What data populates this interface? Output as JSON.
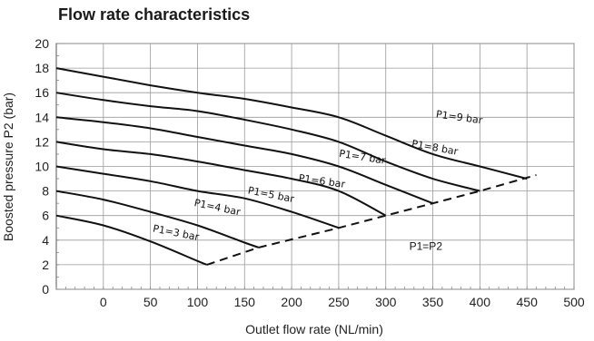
{
  "chart_data": {
    "type": "line",
    "title": "Flow rate characteristics",
    "xlabel": "Outlet flow rate (NL/min)",
    "ylabel": "Boosted pressure P2 (bar)",
    "xlim": [
      -50,
      500
    ],
    "ylim": [
      0,
      20
    ],
    "x_ticks": [
      0,
      50,
      100,
      150,
      200,
      250,
      300,
      350,
      400,
      450,
      500
    ],
    "y_ticks": [
      0,
      2,
      4,
      6,
      8,
      10,
      12,
      14,
      16,
      18,
      20
    ],
    "grid": true,
    "series": [
      {
        "name": "P1=3 bar",
        "points": [
          [
            -50,
            6.0
          ],
          [
            0,
            5.2
          ],
          [
            50,
            3.9
          ],
          [
            100,
            2.3
          ],
          [
            110,
            2.0
          ]
        ]
      },
      {
        "name": "P1=4 bar",
        "points": [
          [
            -50,
            8.0
          ],
          [
            0,
            7.3
          ],
          [
            50,
            6.3
          ],
          [
            100,
            5.2
          ],
          [
            150,
            3.8
          ],
          [
            165,
            3.4
          ]
        ]
      },
      {
        "name": "P1=5 bar",
        "points": [
          [
            -50,
            10.0
          ],
          [
            0,
            9.4
          ],
          [
            50,
            8.8
          ],
          [
            100,
            8.0
          ],
          [
            150,
            7.4
          ],
          [
            200,
            6.3
          ],
          [
            250,
            5.0
          ]
        ]
      },
      {
        "name": "P1=6 bar",
        "points": [
          [
            -50,
            12.0
          ],
          [
            0,
            11.4
          ],
          [
            50,
            11.0
          ],
          [
            100,
            10.4
          ],
          [
            150,
            9.7
          ],
          [
            200,
            9.0
          ],
          [
            250,
            8.0
          ],
          [
            300,
            6.0
          ]
        ]
      },
      {
        "name": "P1=7 bar",
        "points": [
          [
            -50,
            14.0
          ],
          [
            0,
            13.6
          ],
          [
            50,
            13.1
          ],
          [
            100,
            12.4
          ],
          [
            150,
            11.7
          ],
          [
            200,
            11.0
          ],
          [
            250,
            10.0
          ],
          [
            300,
            8.5
          ],
          [
            350,
            7.0
          ]
        ]
      },
      {
        "name": "P1=8 bar",
        "points": [
          [
            -50,
            16.0
          ],
          [
            0,
            15.4
          ],
          [
            50,
            14.9
          ],
          [
            100,
            14.5
          ],
          [
            150,
            13.8
          ],
          [
            200,
            13.0
          ],
          [
            250,
            12.0
          ],
          [
            300,
            10.4
          ],
          [
            350,
            9.0
          ],
          [
            400,
            8.0
          ]
        ]
      },
      {
        "name": "P1=9 bar",
        "points": [
          [
            -50,
            18.0
          ],
          [
            0,
            17.3
          ],
          [
            50,
            16.6
          ],
          [
            100,
            16.0
          ],
          [
            150,
            15.5
          ],
          [
            200,
            14.8
          ],
          [
            250,
            14.0
          ],
          [
            300,
            12.5
          ],
          [
            350,
            11.0
          ],
          [
            400,
            10.0
          ],
          [
            450,
            9.0
          ]
        ]
      }
    ],
    "boundary": {
      "name": "P1=P2",
      "style": "dashed",
      "points": [
        [
          110,
          2.0
        ],
        [
          165,
          3.4
        ],
        [
          250,
          5.0
        ],
        [
          300,
          6.0
        ],
        [
          350,
          7.0
        ],
        [
          400,
          8.0
        ],
        [
          460,
          9.3
        ]
      ]
    },
    "annotations": [
      "P1=3 bar",
      "P1=4 bar",
      "P1=5 bar",
      "P1=6 bar",
      "P1=7 bar",
      "P1=8 bar",
      "P1=9 bar",
      "P1=P2"
    ]
  }
}
